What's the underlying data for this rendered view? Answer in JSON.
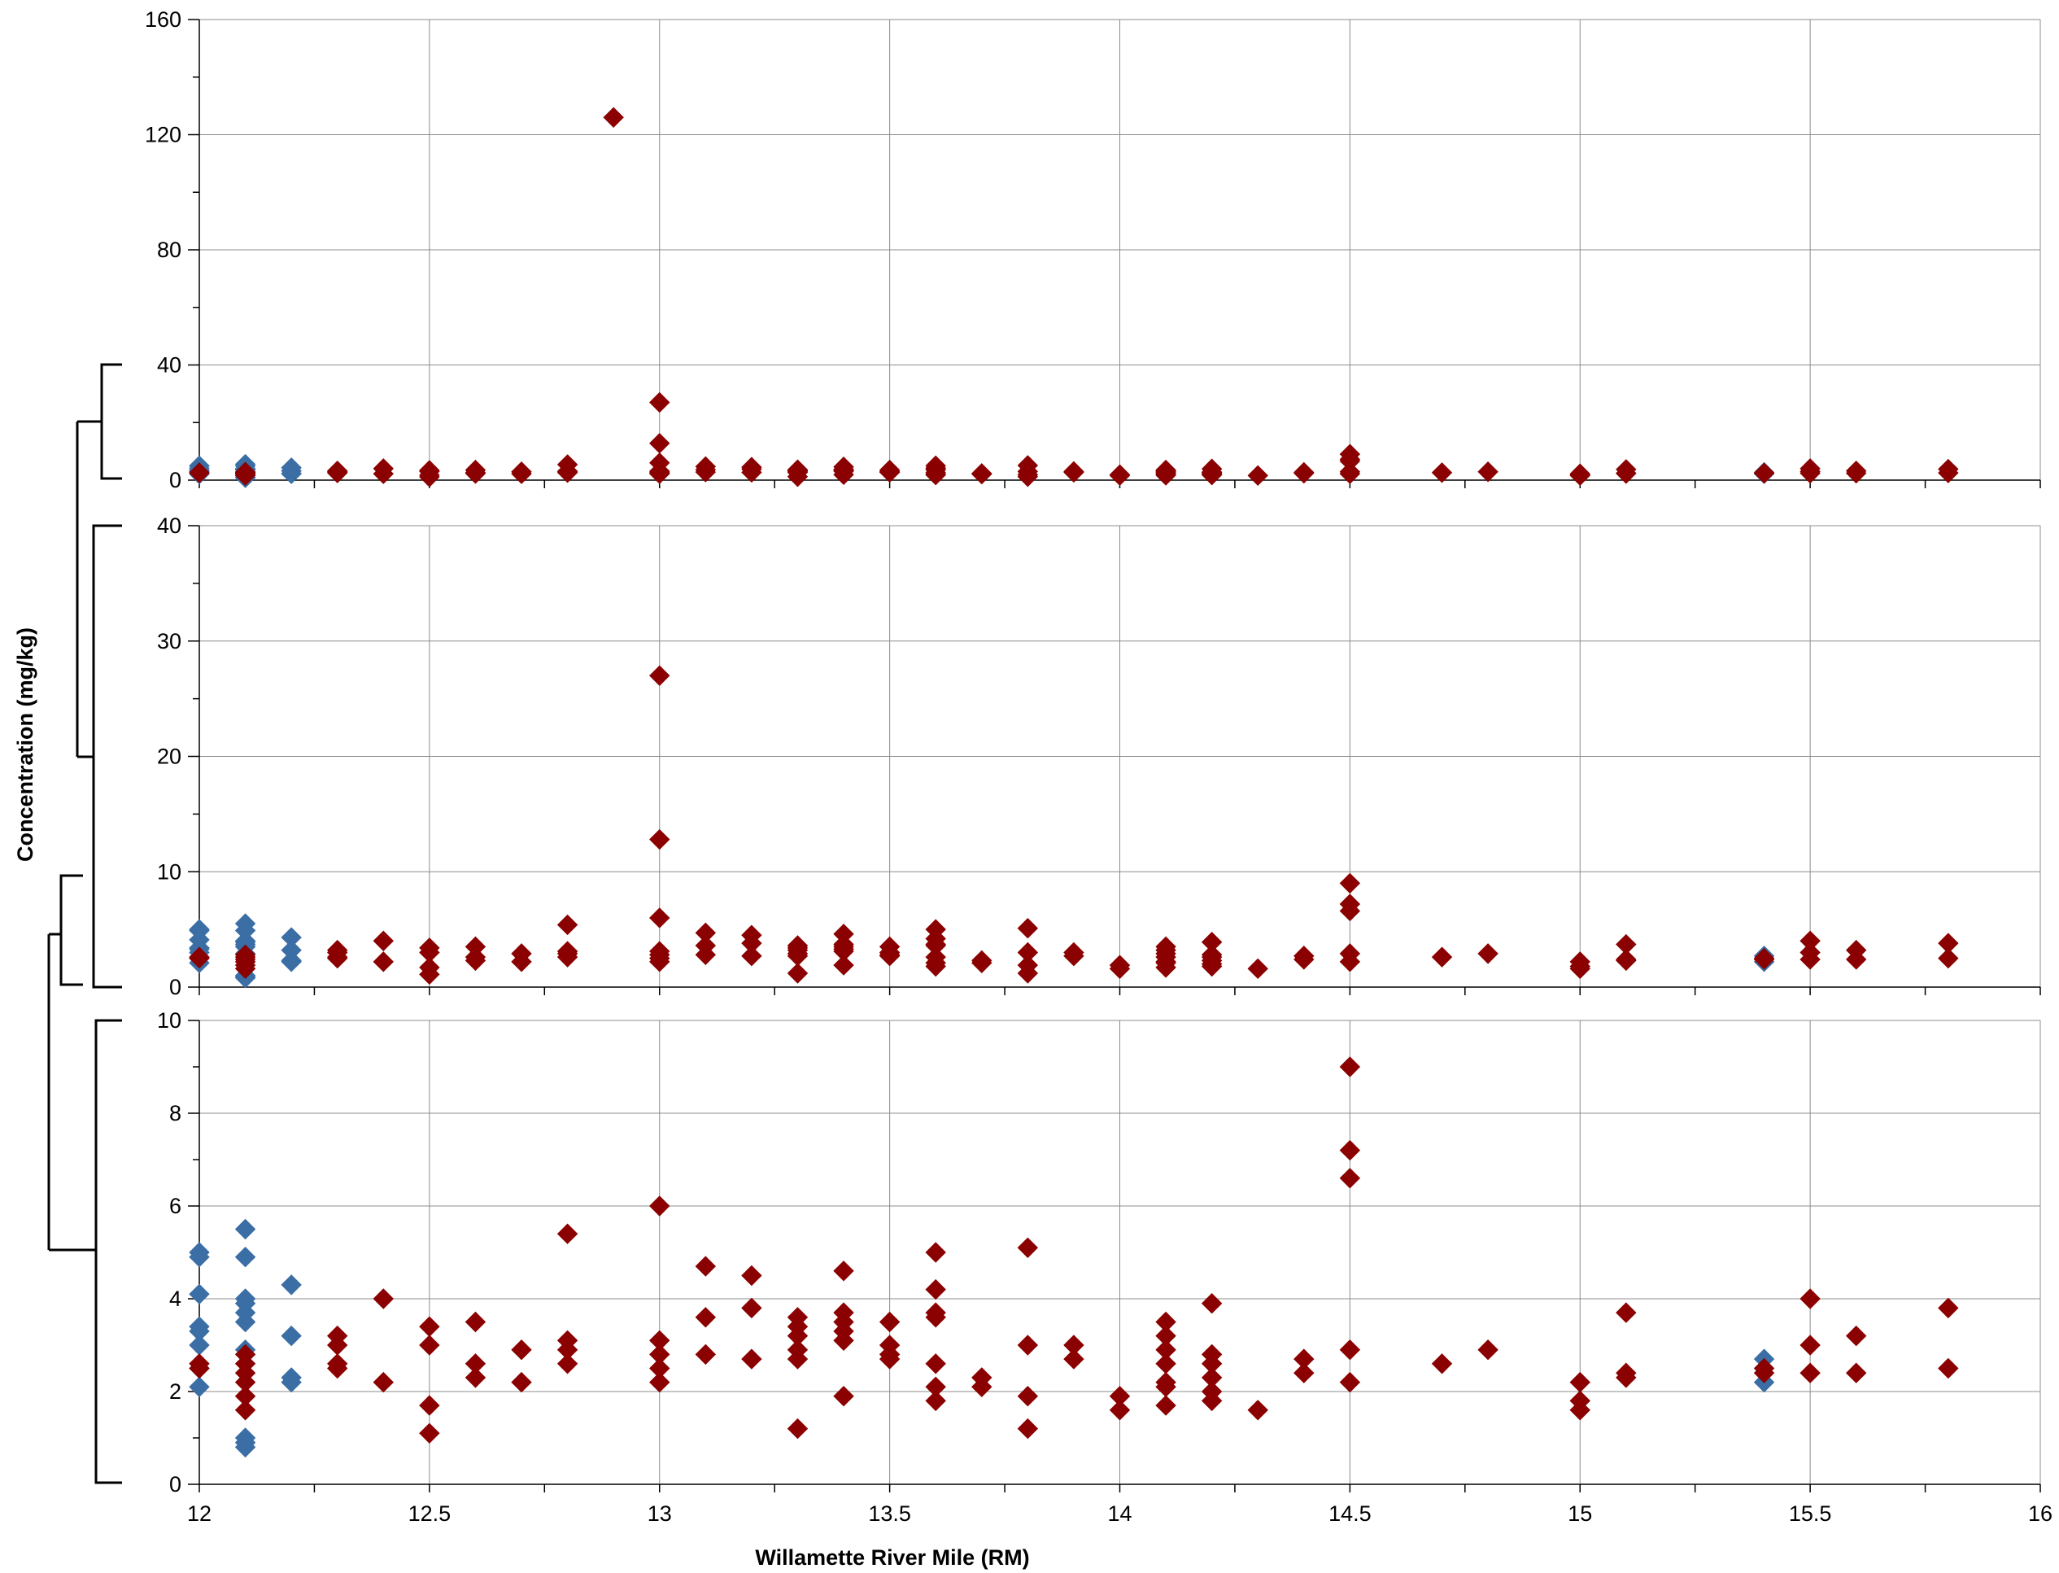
{
  "chart_data": {
    "type": "scatter",
    "xlabel": "Willamette River Mile (RM)",
    "ylabel": "Concentration (mg/kg)",
    "xlim": [
      12,
      16
    ],
    "x_ticks": [
      "12",
      "12.5",
      "13",
      "13.5",
      "14",
      "14.5",
      "15",
      "15.5",
      "16"
    ],
    "grid": true,
    "legend": "none",
    "colors": {
      "blue_series": "#3a6ea5",
      "red_series": "#8b0000"
    },
    "marker": "diamond",
    "panels": [
      {
        "ylim": [
          0,
          160
        ],
        "y_ticks": [
          "0",
          "40",
          "80",
          "120",
          "160"
        ]
      },
      {
        "ylim": [
          0,
          40
        ],
        "y_ticks": [
          "0",
          "10",
          "20",
          "30",
          "40"
        ]
      },
      {
        "ylim": [
          0,
          10
        ],
        "y_ticks": [
          "0",
          "2",
          "4",
          "6",
          "8",
          "10"
        ]
      }
    ],
    "series": [
      {
        "color": "#3a6ea5",
        "points": [
          [
            12,
            5.0
          ],
          [
            12,
            4.9
          ],
          [
            12,
            4.1
          ],
          [
            12,
            3.4
          ],
          [
            12,
            3.3
          ],
          [
            12,
            3.0
          ],
          [
            12,
            2.5
          ],
          [
            12,
            2.1
          ],
          [
            12.1,
            5.5
          ],
          [
            12.1,
            4.9
          ],
          [
            12.1,
            4.0
          ],
          [
            12.1,
            3.9
          ],
          [
            12.1,
            3.7
          ],
          [
            12.1,
            3.5
          ],
          [
            12.1,
            2.9
          ],
          [
            12.1,
            1.0
          ],
          [
            12.1,
            0.9
          ],
          [
            12.1,
            0.8
          ],
          [
            12.2,
            4.3
          ],
          [
            12.2,
            3.2
          ],
          [
            12.2,
            2.3
          ],
          [
            12.2,
            2.2
          ],
          [
            15.4,
            2.7
          ],
          [
            15.4,
            2.2
          ]
        ]
      },
      {
        "color": "#8b0000",
        "points": [
          [
            12,
            2.6
          ],
          [
            12,
            2.5
          ],
          [
            12.1,
            2.8
          ],
          [
            12.1,
            2.6
          ],
          [
            12.1,
            2.4
          ],
          [
            12.1,
            2.2
          ],
          [
            12.1,
            1.9
          ],
          [
            12.1,
            1.6
          ],
          [
            12.3,
            3.2
          ],
          [
            12.3,
            3.0
          ],
          [
            12.3,
            2.6
          ],
          [
            12.3,
            2.5
          ],
          [
            12.4,
            4.0
          ],
          [
            12.4,
            2.2
          ],
          [
            12.5,
            3.4
          ],
          [
            12.5,
            3.0
          ],
          [
            12.5,
            1.7
          ],
          [
            12.5,
            1.1
          ],
          [
            12.6,
            3.5
          ],
          [
            12.6,
            2.6
          ],
          [
            12.6,
            2.3
          ],
          [
            12.7,
            2.9
          ],
          [
            12.7,
            2.2
          ],
          [
            12.8,
            5.4
          ],
          [
            12.8,
            3.1
          ],
          [
            12.8,
            2.9
          ],
          [
            12.8,
            2.6
          ],
          [
            12.9,
            126
          ],
          [
            13,
            27
          ],
          [
            13,
            12.8
          ],
          [
            13,
            6.0
          ],
          [
            13,
            3.1
          ],
          [
            13,
            2.8
          ],
          [
            13,
            2.5
          ],
          [
            13,
            2.2
          ],
          [
            13.1,
            4.7
          ],
          [
            13.1,
            3.6
          ],
          [
            13.1,
            2.8
          ],
          [
            13.2,
            4.5
          ],
          [
            13.2,
            3.8
          ],
          [
            13.2,
            2.7
          ],
          [
            13.3,
            3.6
          ],
          [
            13.3,
            3.4
          ],
          [
            13.3,
            3.2
          ],
          [
            13.3,
            2.9
          ],
          [
            13.3,
            2.7
          ],
          [
            13.3,
            1.2
          ],
          [
            13.4,
            4.6
          ],
          [
            13.4,
            3.7
          ],
          [
            13.4,
            3.5
          ],
          [
            13.4,
            3.3
          ],
          [
            13.4,
            3.1
          ],
          [
            13.4,
            1.9
          ],
          [
            13.5,
            3.5
          ],
          [
            13.5,
            3.0
          ],
          [
            13.5,
            2.8
          ],
          [
            13.5,
            2.7
          ],
          [
            13.6,
            5.0
          ],
          [
            13.6,
            4.2
          ],
          [
            13.6,
            3.7
          ],
          [
            13.6,
            3.6
          ],
          [
            13.6,
            2.6
          ],
          [
            13.6,
            2.1
          ],
          [
            13.6,
            1.8
          ],
          [
            13.7,
            2.3
          ],
          [
            13.7,
            2.1
          ],
          [
            13.8,
            5.1
          ],
          [
            13.8,
            3.0
          ],
          [
            13.8,
            1.9
          ],
          [
            13.8,
            1.2
          ],
          [
            13.9,
            3.0
          ],
          [
            13.9,
            2.7
          ],
          [
            14,
            1.9
          ],
          [
            14,
            1.6
          ],
          [
            14.1,
            3.5
          ],
          [
            14.1,
            3.2
          ],
          [
            14.1,
            2.9
          ],
          [
            14.1,
            2.6
          ],
          [
            14.1,
            2.2
          ],
          [
            14.1,
            2.1
          ],
          [
            14.1,
            1.7
          ],
          [
            14.2,
            3.9
          ],
          [
            14.2,
            2.8
          ],
          [
            14.2,
            2.6
          ],
          [
            14.2,
            2.3
          ],
          [
            14.2,
            2.0
          ],
          [
            14.2,
            1.8
          ],
          [
            14.3,
            1.6
          ],
          [
            14.4,
            2.7
          ],
          [
            14.4,
            2.4
          ],
          [
            14.5,
            9.0
          ],
          [
            14.5,
            7.2
          ],
          [
            14.5,
            6.6
          ],
          [
            14.5,
            2.9
          ],
          [
            14.5,
            2.2
          ],
          [
            14.7,
            2.6
          ],
          [
            14.8,
            2.9
          ],
          [
            15,
            2.2
          ],
          [
            15,
            1.8
          ],
          [
            15,
            1.6
          ],
          [
            15.1,
            3.7
          ],
          [
            15.1,
            2.4
          ],
          [
            15.1,
            2.3
          ],
          [
            15.4,
            2.5
          ],
          [
            15.4,
            2.4
          ],
          [
            15.5,
            4.0
          ],
          [
            15.5,
            3.0
          ],
          [
            15.5,
            2.4
          ],
          [
            15.6,
            3.2
          ],
          [
            15.6,
            2.4
          ],
          [
            15.8,
            3.8
          ],
          [
            15.8,
            2.5
          ]
        ]
      }
    ]
  }
}
